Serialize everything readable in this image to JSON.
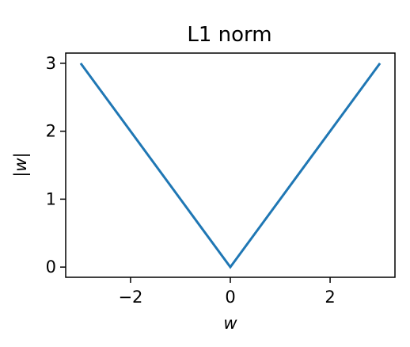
{
  "chart_data": {
    "type": "line",
    "title": "L1 norm",
    "xlabel": "w",
    "ylabel": "|w|",
    "xlim": [
      -3.3,
      3.3
    ],
    "ylim": [
      -0.15,
      3.15
    ],
    "grid": false,
    "x_ticks": [
      -2,
      0,
      2
    ],
    "x_tick_labels": [
      "−2",
      "0",
      "2"
    ],
    "y_ticks": [
      0,
      1,
      2,
      3
    ],
    "y_tick_labels": [
      "0",
      "1",
      "2",
      "3"
    ],
    "series": [
      {
        "color": "#1f77b4",
        "x": [
          -3,
          0,
          3
        ],
        "y": [
          3,
          0,
          3
        ]
      }
    ]
  }
}
